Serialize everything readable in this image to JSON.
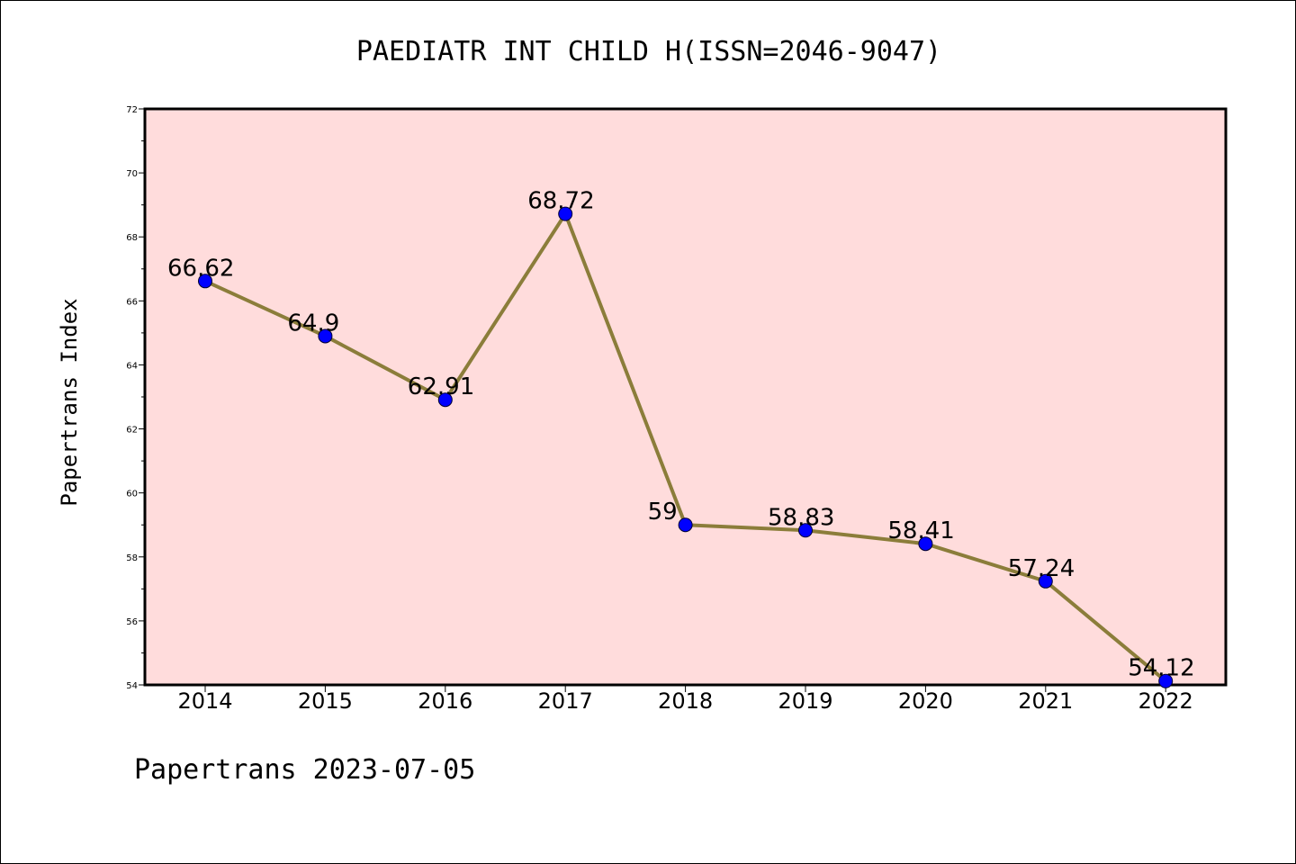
{
  "chart_data": {
    "type": "line",
    "title": "PAEDIATR INT CHILD H(ISSN=2046-9047)",
    "xlabel": "",
    "ylabel": "Papertrans Index",
    "categories": [
      "2014",
      "2015",
      "2016",
      "2017",
      "2018",
      "2019",
      "2020",
      "2021",
      "2022"
    ],
    "series": [
      {
        "values": [
          66.62,
          64.9,
          62.91,
          68.72,
          59,
          58.83,
          58.41,
          57.24,
          54.12
        ],
        "labels": [
          "66.62",
          "64.9",
          "62.91",
          "68.72",
          "59",
          "58.83",
          "58.41",
          "57.24",
          "54.12"
        ],
        "line_color": "#8b7d3a",
        "marker_color": "#0000ff"
      }
    ],
    "ylim": [
      54,
      72
    ],
    "yticks": [
      "54",
      "56",
      "58",
      "60",
      "62",
      "64",
      "66",
      "68",
      "70",
      "72"
    ],
    "plot_background": "#ffdcdc",
    "grid": false,
    "legend": "none"
  },
  "footer": {
    "text": "Papertrans 2023-07-05"
  }
}
